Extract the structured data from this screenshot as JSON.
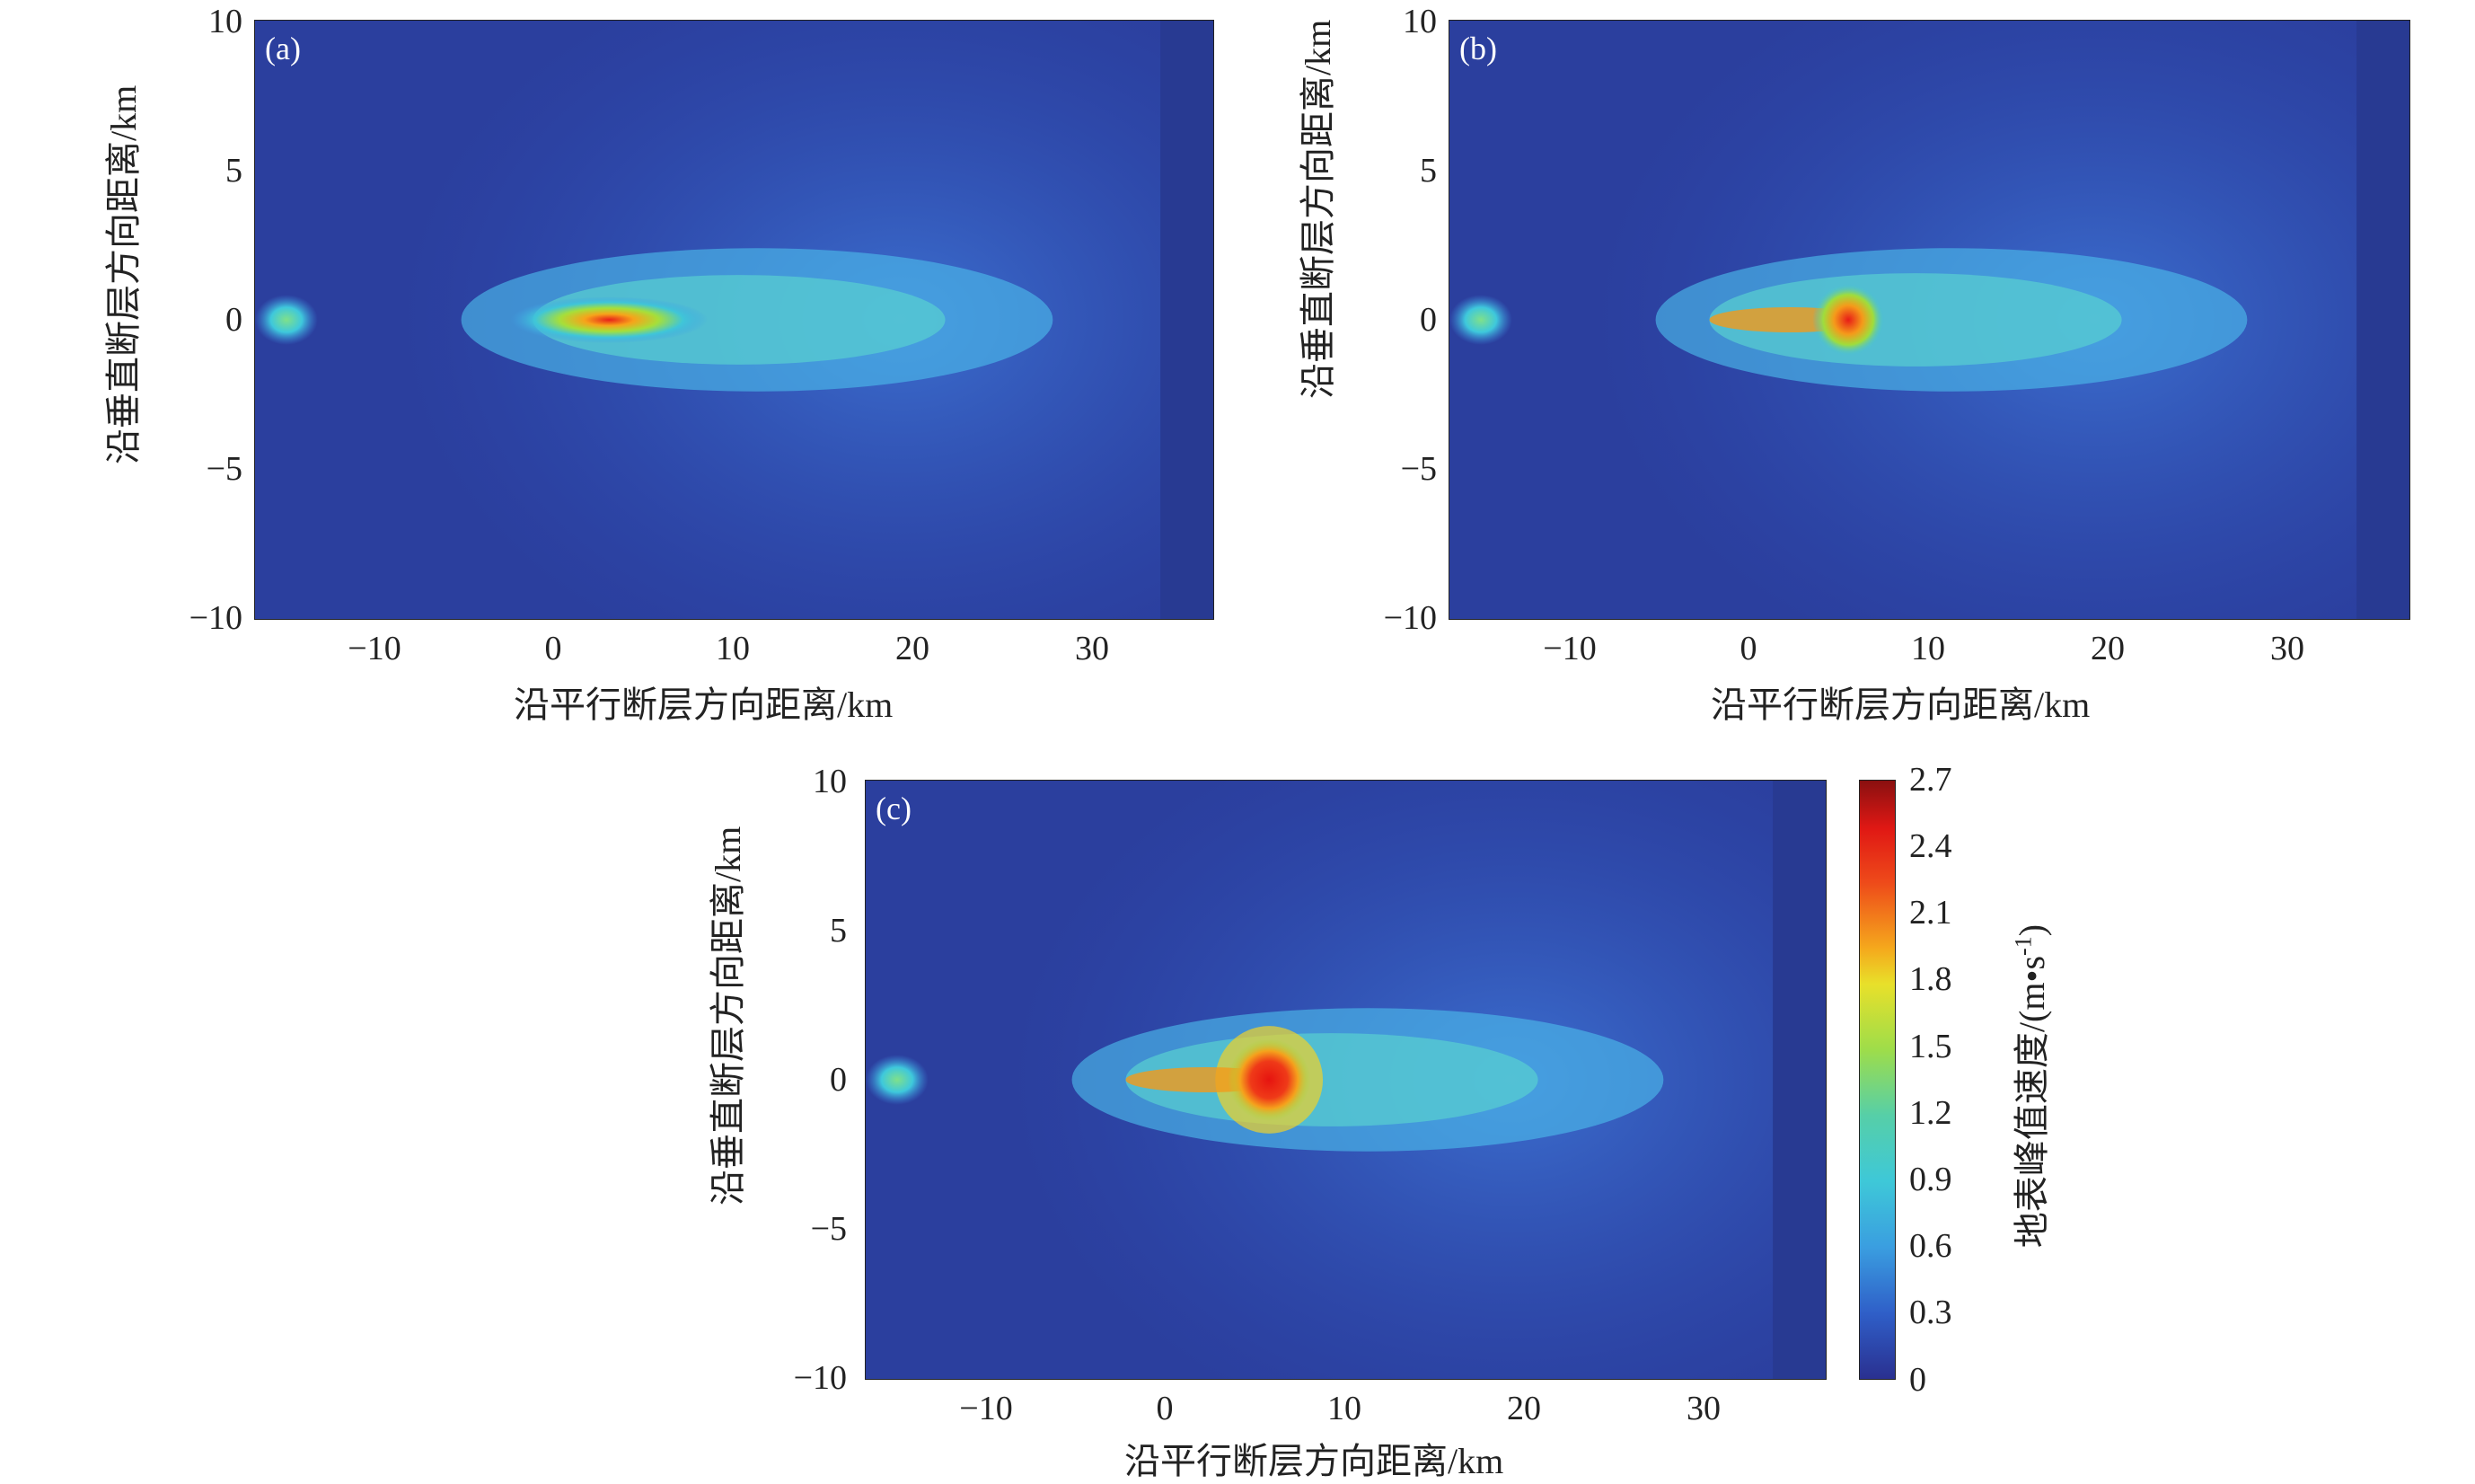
{
  "chart_data": [
    {
      "type": "heatmap",
      "panel": "(a)",
      "xlabel": "沿平行断层方向距离/km",
      "ylabel": "沿垂直断层方向距离/km",
      "xlim": [
        -16.5,
        37
      ],
      "ylim": [
        -10,
        10
      ],
      "xticks": [
        "−10",
        "0",
        "10",
        "20",
        "30"
      ],
      "yticks": [
        "10",
        "5",
        "0",
        "−5",
        "−10"
      ],
      "features": [
        {
          "name": "peak",
          "x": 3,
          "y": 0,
          "value": 2.0
        },
        {
          "name": "left-spot",
          "x": -15,
          "y": 0,
          "value": 1.0
        }
      ]
    },
    {
      "type": "heatmap",
      "panel": "(b)",
      "xlabel": "沿平行断层方向距离/km",
      "ylabel": "沿垂直断层方向距离/km",
      "xlim": [
        -16.5,
        37
      ],
      "ylim": [
        -10,
        10
      ],
      "xticks": [
        "−10",
        "0",
        "10",
        "20",
        "30"
      ],
      "yticks": [
        "10",
        "5",
        "0",
        "−5",
        "−10"
      ],
      "features": [
        {
          "name": "peak",
          "x": 5.5,
          "y": 0,
          "value": 2.4
        },
        {
          "name": "left-spot",
          "x": -15,
          "y": 0,
          "value": 1.0
        }
      ]
    },
    {
      "type": "heatmap",
      "panel": "(c)",
      "xlabel": "沿平行断层方向距离/km",
      "ylabel": "沿垂直断层方向距离/km",
      "xlim": [
        -16.5,
        37
      ],
      "ylim": [
        -10,
        10
      ],
      "xticks": [
        "−10",
        "0",
        "10",
        "20",
        "30"
      ],
      "yticks": [
        "10",
        "5",
        "0",
        "−5",
        "−10"
      ],
      "features": [
        {
          "name": "peak",
          "x": 5.8,
          "y": 0,
          "value": 2.7
        },
        {
          "name": "left-spot",
          "x": -15,
          "y": 0,
          "value": 1.0
        }
      ]
    }
  ],
  "colorbar": {
    "label": "地表峰值速度/(m•s",
    "label_sup": "-1",
    "label_end": ")",
    "ticks": [
      "2.7",
      "2.4",
      "2.1",
      "1.8",
      "1.5",
      "1.2",
      "0.9",
      "0.6",
      "0.3",
      "0"
    ],
    "range": [
      0,
      2.7
    ]
  }
}
